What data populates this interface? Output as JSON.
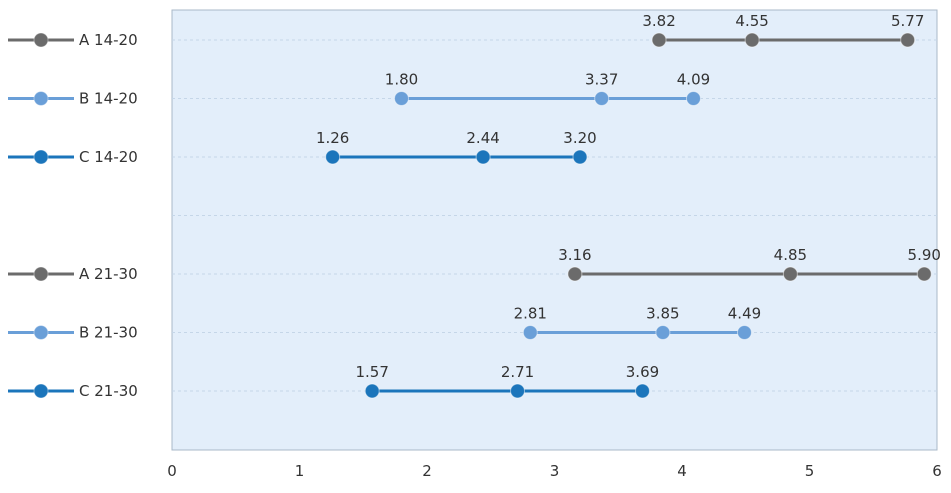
{
  "chart_data": {
    "type": "dot-range",
    "xlim": [
      0,
      6
    ],
    "x_ticks": [
      "0",
      "1",
      "2",
      "3",
      "4",
      "5",
      "6"
    ],
    "grid": true,
    "colors": {
      "A": "#6b6b6b",
      "B": "#6a9fd8",
      "C": "#1b75bb",
      "plot_background": "#e3eefa",
      "plot_border": "#a9b8c8"
    },
    "rows": [
      {
        "label": "A 14-20",
        "series": "A",
        "values": [
          3.82,
          4.55,
          5.77
        ],
        "value_labels": [
          "3.82",
          "4.55",
          "5.77"
        ]
      },
      {
        "label": "B 14-20",
        "series": "B",
        "values": [
          1.8,
          3.37,
          4.09
        ],
        "value_labels": [
          "1.80",
          "3.37",
          "4.09"
        ]
      },
      {
        "label": "C 14-20",
        "series": "C",
        "values": [
          1.26,
          2.44,
          3.2
        ],
        "value_labels": [
          "1.26",
          "2.44",
          "3.20"
        ]
      },
      {
        "label": "",
        "series": null,
        "values": [],
        "value_labels": []
      },
      {
        "label": "A 21-30",
        "series": "A",
        "values": [
          3.16,
          4.85,
          5.9
        ],
        "value_labels": [
          "3.16",
          "4.85",
          "5.90"
        ]
      },
      {
        "label": "B 21-30",
        "series": "B",
        "values": [
          2.81,
          3.85,
          4.49
        ],
        "value_labels": [
          "2.81",
          "3.85",
          "4.49"
        ]
      },
      {
        "label": "C 21-30",
        "series": "C",
        "values": [
          1.57,
          2.71,
          3.69
        ],
        "value_labels": [
          "1.57",
          "2.71",
          "3.69"
        ]
      }
    ]
  }
}
